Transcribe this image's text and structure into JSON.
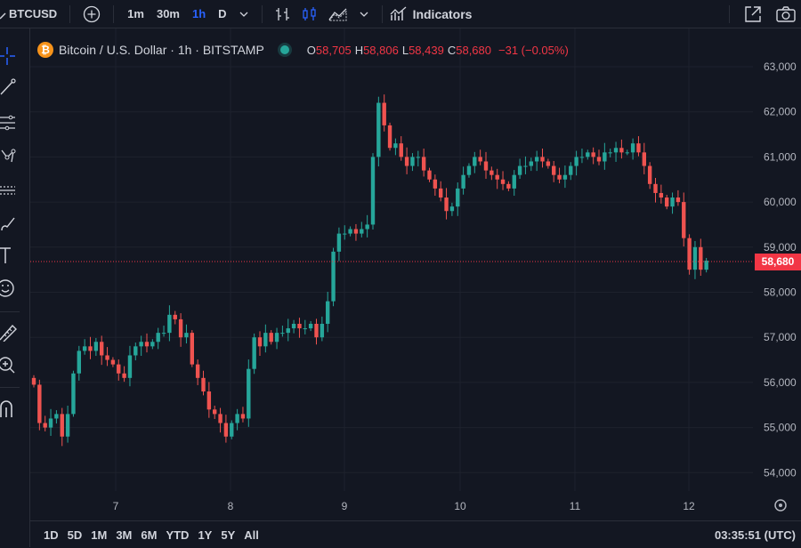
{
  "toolbar": {
    "symbol": "BTCUSD",
    "timeframes": [
      "1m",
      "30m",
      "1h",
      "D"
    ],
    "active_timeframe": "1h",
    "indicators_label": "Indicators"
  },
  "legend": {
    "title": "Bitcoin / U.S. Dollar · 1h · BITSTAMP",
    "o_label": "O",
    "o": "58,705",
    "h_label": "H",
    "h": "58,806",
    "l_label": "L",
    "l": "58,439",
    "c_label": "C",
    "c": "58,680",
    "change": "−31 (−0.05%)"
  },
  "price_tag": "58,680",
  "bottom": {
    "ranges": [
      "1D",
      "5D",
      "1M",
      "3M",
      "6M",
      "YTD",
      "1Y",
      "5Y",
      "All"
    ],
    "time": "03:35:51 (UTC)"
  },
  "colors": {
    "up": "#26a69a",
    "down": "#ef5350",
    "accent": "#2962ff",
    "bg": "#131722"
  },
  "chart_data": {
    "type": "candlestick",
    "y_ticks": [
      "63,000",
      "62,000",
      "61,000",
      "60,000",
      "59,000",
      "58,000",
      "57,000",
      "56,000",
      "55,000",
      "54,000"
    ],
    "x_ticks": [
      "7",
      "8",
      "9",
      "10",
      "11",
      "12"
    ],
    "ylim": [
      53800,
      63200
    ],
    "last_price": 58680,
    "closes": [
      55950,
      55100,
      55000,
      55200,
      55300,
      54800,
      55300,
      56200,
      56700,
      56800,
      56700,
      56900,
      56600,
      56500,
      56400,
      56200,
      56100,
      56600,
      56800,
      56900,
      56800,
      56900,
      57100,
      57100,
      57500,
      57400,
      57000,
      57100,
      56400,
      56100,
      55800,
      55400,
      55300,
      55100,
      54800,
      55100,
      55300,
      55200,
      56300,
      57000,
      56800,
      57100,
      56900,
      57100,
      57100,
      57200,
      57300,
      57200,
      57200,
      57300,
      57000,
      57300,
      57800,
      58900,
      59300,
      59300,
      59400,
      59300,
      59400,
      59500,
      61000,
      62200,
      61700,
      61200,
      61300,
      61000,
      60800,
      61000,
      61000,
      60700,
      60500,
      60300,
      60100,
      59800,
      59900,
      60300,
      60600,
      60800,
      61000,
      60900,
      60700,
      60600,
      60500,
      60400,
      60300,
      60600,
      60800,
      60800,
      60900,
      61000,
      60900,
      60800,
      60600,
      60500,
      60600,
      60800,
      61000,
      61000,
      61100,
      61000,
      60900,
      61100,
      61100,
      61200,
      61100,
      61100,
      61300,
      61100,
      60800,
      60400,
      60200,
      60100,
      59900,
      60100,
      60000,
      59200,
      58500,
      59000,
      58500,
      58700
    ]
  }
}
